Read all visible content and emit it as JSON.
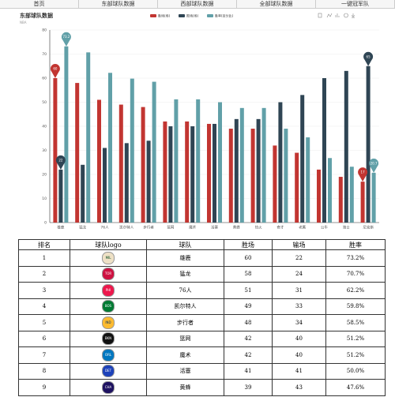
{
  "nav": [
    "首页",
    "东部球队数据",
    "西部球队数据",
    "全部球队数据",
    "一键冠军队"
  ],
  "chart_data": {
    "type": "bar",
    "title": "东部球队数据",
    "subtitle": "NBA",
    "categories": [
      "雄鹿",
      "猛龙",
      "76人",
      "凯尔特人",
      "步行者",
      "篮网",
      "魔术",
      "活塞",
      "黄蜂",
      "热火",
      "奇才",
      "老鹰",
      "公牛",
      "骑士",
      "尼克斯"
    ],
    "series": [
      {
        "name": "胜场(场)",
        "color": "#c23531",
        "values": [
          60,
          58,
          51,
          49,
          48,
          42,
          42,
          41,
          39,
          39,
          32,
          29,
          22,
          19,
          17
        ]
      },
      {
        "name": "败场(场)",
        "color": "#2f4554",
        "values": [
          22,
          24,
          31,
          33,
          34,
          40,
          40,
          41,
          43,
          43,
          50,
          53,
          60,
          63,
          65
        ]
      },
      {
        "name": "胜率(百分比)",
        "color": "#61a0a8",
        "values": [
          73.2,
          70.7,
          62.2,
          59.8,
          58.5,
          51.2,
          51.2,
          50.0,
          47.6,
          47.6,
          39.0,
          35.4,
          26.8,
          23.2,
          20.7
        ]
      }
    ],
    "ylim": [
      0,
      80
    ],
    "yticks": [
      0,
      10,
      20,
      30,
      40,
      50,
      60,
      70,
      80
    ],
    "grid": true
  },
  "table": {
    "headers": [
      "排名",
      "球队logo",
      "球队",
      "胜场",
      "输场",
      "胜率"
    ],
    "rows": [
      [
        1,
        "MIL",
        "雄鹿",
        60,
        22,
        "73.2%"
      ],
      [
        2,
        "TOR",
        "猛龙",
        58,
        24,
        "70.7%"
      ],
      [
        3,
        "PHI",
        "76人",
        51,
        31,
        "62.2%"
      ],
      [
        4,
        "BOS",
        "凯尔特人",
        49,
        33,
        "59.8%"
      ],
      [
        5,
        "IND",
        "步行者",
        48,
        34,
        "58.5%"
      ],
      [
        6,
        "BKN",
        "篮网",
        42,
        40,
        "51.2%"
      ],
      [
        7,
        "ORL",
        "魔术",
        42,
        40,
        "51.2%"
      ],
      [
        8,
        "DET",
        "活塞",
        41,
        41,
        "50.0%"
      ],
      [
        9,
        "CHA",
        "黄蜂",
        39,
        43,
        "47.6%"
      ]
    ]
  }
}
